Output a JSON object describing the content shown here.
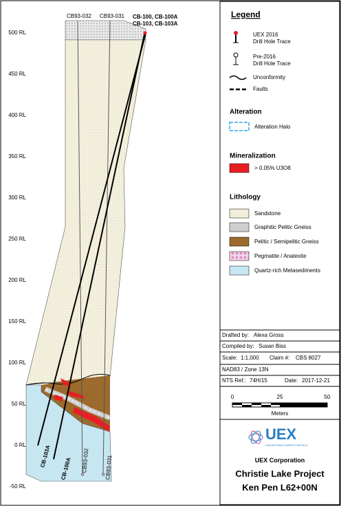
{
  "section": {
    "elevations": [
      "500 RL",
      "450 RL",
      "400 RL",
      "350 RL",
      "300 RL",
      "250 RL",
      "200 RL",
      "150 RL",
      "100 RL",
      "50 RL",
      "0 RL",
      "-50 RL"
    ],
    "top_labels": [
      "CB93-032",
      "CB93-031",
      "CB-100, CB-100A",
      "CB-103, CB-103A"
    ],
    "hole_labels": [
      "CB-103A",
      "CB-100A",
      "CB93-032",
      "CB93-031"
    ]
  },
  "legend": {
    "title": "Legend",
    "uex_2016": [
      "UEX 2016",
      "Drill Hole Trace"
    ],
    "pre_2016": [
      "Pre-2016",
      "Drill Hole Trace"
    ],
    "unconformity": "Unconformity",
    "faults": "Faults",
    "alteration": {
      "title": "Alteration",
      "item": "Alteration Halo"
    },
    "mineralization": {
      "title": "Mineralization",
      "item": "> 0.05% U3O8"
    },
    "lithology": {
      "title": "Lithology",
      "items": [
        "Sandstone",
        "Graphitic Pelitic Gneiss",
        "Pelitic / Semipelitic Gneiss",
        "Pegmatite / Anatexite",
        "Quartz-rich Metasediments"
      ]
    }
  },
  "info": {
    "drafted_label": "Drafted by:",
    "drafted": "Alexa Gross",
    "compiled_label": "Compiled by:",
    "compiled": "Susan Biss",
    "scale_label": "Scale:",
    "scale": "1:1,000",
    "claim_label": "Claim #:",
    "claim": "CBS 8027",
    "datum": "NAD83 / Zone 13N",
    "nts_label": "NTS Ref.:",
    "nts": "74H/15",
    "date_label": "Date:",
    "date": "2017-12-21"
  },
  "scale_bar": {
    "labels": [
      "0",
      "25",
      "50"
    ],
    "unit": "Meters"
  },
  "logo": {
    "name": "UEX",
    "tagline": "UNEARTHING ENERGY METALS"
  },
  "title_block": {
    "company": "UEX Corporation",
    "project": "Christie Lake Project",
    "section": "Ken Pen L62+00N"
  }
}
